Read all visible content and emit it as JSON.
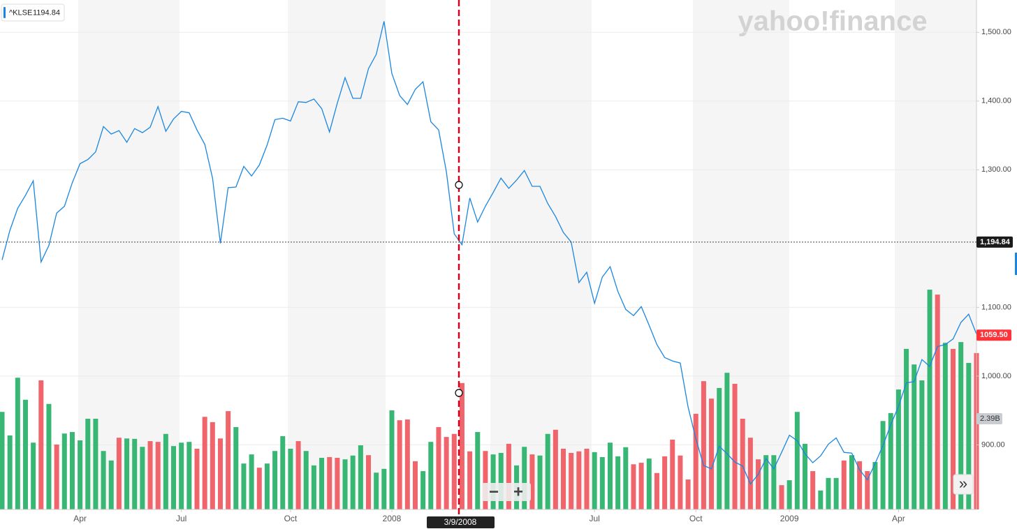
{
  "chart_data": {
    "type": "line",
    "watermark": "yahoo!finance",
    "categories": [
      null,
      null,
      null,
      null,
      null,
      null,
      null,
      null,
      null,
      null,
      "Apr",
      null,
      null,
      null,
      null,
      null,
      null,
      null,
      null,
      null,
      null,
      null,
      null,
      "Jul",
      null,
      null,
      null,
      null,
      null,
      null,
      null,
      null,
      null,
      null,
      null,
      null,
      null,
      "Oct",
      null,
      null,
      null,
      null,
      null,
      null,
      null,
      null,
      null,
      null,
      null,
      null,
      "2008",
      null,
      null,
      null,
      null,
      null,
      null,
      null,
      null,
      null,
      null,
      null,
      null,
      null,
      null,
      null,
      null,
      null,
      null,
      null,
      null,
      null,
      null,
      null,
      null,
      null,
      "Jul",
      null,
      null,
      null,
      null,
      null,
      null,
      null,
      null,
      null,
      null,
      null,
      null,
      "Oct",
      null,
      null,
      null,
      null,
      null,
      null,
      null,
      null,
      null,
      null,
      null,
      "2009",
      null,
      null,
      null,
      null,
      null,
      null,
      null,
      null,
      null,
      null,
      null,
      null,
      null,
      "Apr",
      null,
      null,
      null,
      null,
      null,
      null,
      null,
      null,
      null,
      null
    ],
    "series": [
      {
        "name": "^KLSE",
        "color": "#1a86e0",
        "values": [
          1169,
          1212,
          1244,
          1263,
          1284,
          1166,
          1190,
          1237,
          1247,
          1281,
          1309,
          1315,
          1326,
          1363,
          1352,
          1357,
          1340,
          1360,
          1354,
          1362,
          1392,
          1356,
          1374,
          1385,
          1383,
          1358,
          1337,
          1288,
          1193,
          1274,
          1275,
          1305,
          1291,
          1307,
          1336,
          1373,
          1375,
          1371,
          1399,
          1398,
          1403,
          1389,
          1355,
          1397,
          1434,
          1404,
          1404,
          1447,
          1468,
          1516,
          1440,
          1408,
          1395,
          1417,
          1428,
          1370,
          1358,
          1297,
          1207,
          1191,
          1259,
          1224,
          1247,
          1267,
          1288,
          1273,
          1285,
          1299,
          1276,
          1276,
          1251,
          1232,
          1209,
          1195,
          1136,
          1151,
          1106,
          1144,
          1159,
          1123,
          1097,
          1088,
          1101,
          1074,
          1046,
          1027,
          1022,
          1019,
          955,
          909,
          870,
          865,
          898,
          887,
          875,
          869,
          843,
          857,
          880,
          865,
          889,
          914,
          906,
          887,
          874,
          884,
          901,
          910,
          889,
          888,
          864,
          849,
          873,
          899,
          929,
          956,
          990,
          992,
          1024,
          1014,
          1043,
          1046,
          1054,
          1078,
          1090,
          1061
        ]
      }
    ],
    "volume": {
      "axis": "y2",
      "values": [
        2.57,
        1.95,
        3.47,
        2.89,
        1.76,
        3.4,
        2.78,
        1.71,
        2.0,
        2.04,
        1.82,
        2.39,
        2.39,
        1.54,
        1.29,
        1.89,
        1.87,
        1.86,
        1.65,
        1.8,
        1.78,
        1.99,
        1.67,
        1.76,
        1.78,
        1.6,
        2.44,
        2.3,
        1.87,
        2.59,
        2.17,
        1.21,
        1.45,
        1.1,
        1.21,
        1.54,
        1.93,
        1.6,
        1.8,
        1.54,
        1.16,
        1.36,
        1.38,
        1.36,
        1.32,
        1.42,
        1.69,
        1.43,
        0.97,
        1.07,
        2.61,
        2.35,
        2.37,
        1.27,
        1.01,
        1.78,
        2.17,
        1.91,
        1.99,
        3.33,
        1.53,
        2.04,
        1.54,
        1.45,
        1.49,
        1.73,
        1.16,
        1.65,
        1.45,
        1.42,
        1.99,
        2.1,
        1.6,
        1.49,
        1.53,
        1.6,
        1.51,
        1.38,
        1.76,
        1.4,
        1.64,
        1.19,
        1.23,
        1.34,
        0.96,
        1.4,
        1.84,
        1.42,
        0.79,
        2.52,
        3.38,
        2.92,
        3.2,
        3.6,
        3.31,
        2.39,
        1.89,
        1.32,
        1.43,
        1.43,
        0.64,
        0.77,
        2.57,
        1.73,
        1.01,
        0.5,
        0.83,
        0.83,
        1.29,
        1.43,
        1.27,
        1.01,
        1.25,
        2.33,
        2.54,
        3.16,
        4.23,
        3.82,
        3.4,
        5.79,
        5.66,
        4.39,
        4.23,
        4.41,
        3.86,
        4.12
      ],
      "colors": [
        "#38b774",
        "#38b774",
        "#38b774",
        "#38b774",
        "#38b774",
        "#f0646c",
        "#38b774",
        "#f0646c",
        "#38b774",
        "#38b774",
        "#38b774",
        "#38b774",
        "#38b774",
        "#38b774",
        "#38b774",
        "#f0646c",
        "#38b774",
        "#38b774",
        "#38b774",
        "#f0646c",
        "#f0646c",
        "#38b774",
        "#38b774",
        "#38b774",
        "#38b774",
        "#f0646c",
        "#f0646c",
        "#f0646c",
        "#f0646c",
        "#f0646c",
        "#38b774",
        "#38b774",
        "#38b774",
        "#f0646c",
        "#38b774",
        "#38b774",
        "#38b774",
        "#38b774",
        "#f0646c",
        "#38b774",
        "#38b774",
        "#38b774",
        "#f0646c",
        "#f0646c",
        "#38b774",
        "#38b774",
        "#38b774",
        "#f0646c",
        "#38b774",
        "#38b774",
        "#38b774",
        "#f0646c",
        "#f0646c",
        "#f0646c",
        "#38b774",
        "#38b774",
        "#f0646c",
        "#f0646c",
        "#f0646c",
        "#f0646c",
        "#f0646c",
        "#38b774",
        "#f0646c",
        "#38b774",
        "#38b774",
        "#f0646c",
        "#38b774",
        "#38b774",
        "#f0646c",
        "#38b774",
        "#38b774",
        "#f0646c",
        "#f0646c",
        "#f0646c",
        "#f0646c",
        "#f0646c",
        "#38b774",
        "#38b774",
        "#38b774",
        "#38b774",
        "#38b774",
        "#f0646c",
        "#f0646c",
        "#38b774",
        "#f0646c",
        "#f0646c",
        "#f0646c",
        "#f0646c",
        "#f0646c",
        "#f0646c",
        "#f0646c",
        "#f0646c",
        "#38b774",
        "#38b774",
        "#f0646c",
        "#f0646c",
        "#f0646c",
        "#f0646c",
        "#38b774",
        "#38b774",
        "#f0646c",
        "#38b774",
        "#38b774",
        "#38b774",
        "#f0646c",
        "#38b774",
        "#38b774",
        "#38b774",
        "#f0646c",
        "#38b774",
        "#f0646c",
        "#f0646c",
        "#38b774",
        "#38b774",
        "#38b774",
        "#38b774",
        "#38b774",
        "#38b774",
        "#38b774",
        "#38b774",
        "#f0646c",
        "#38b774",
        "#f0646c",
        "#38b774",
        "#38b774",
        "#f0646c"
      ]
    },
    "ylim": [
      806,
      1547
    ],
    "yticks": [
      {
        "value": 900,
        "label": "900.00"
      },
      {
        "value": 1000,
        "label": "1,000.00"
      },
      {
        "value": 1100,
        "label": "1,100.00"
      },
      {
        "value": 1300,
        "label": "1,300.00"
      },
      {
        "value": 1400,
        "label": "1,400.00"
      },
      {
        "value": 1500,
        "label": "1,500.00"
      }
    ],
    "y2lim": [
      0,
      13.42
    ],
    "y2ticks": [
      {
        "value": 2.39,
        "label": "2.39B"
      }
    ],
    "grid": true,
    "crosshair": {
      "date": "3/9/2008",
      "value": 1194.84,
      "value_label": "1,194.84"
    },
    "last_price": {
      "value": 1059.5,
      "label": "1059.50"
    },
    "controls": {
      "zoom_out": "−",
      "zoom_in": "+",
      "more": "»"
    }
  }
}
